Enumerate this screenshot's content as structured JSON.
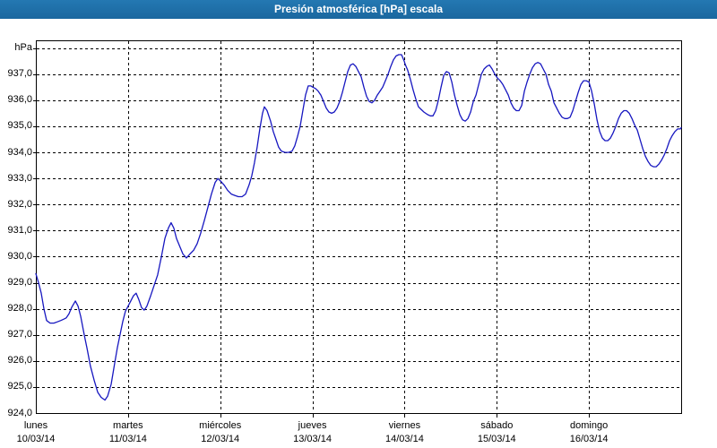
{
  "window": {
    "title": "Presión atmosférica [hPa] escala"
  },
  "axes": {
    "unit_label": "hPa",
    "y_tick_labels": [
      {
        "label": "937,0",
        "value": 937
      },
      {
        "label": "936,0",
        "value": 936
      },
      {
        "label": "935,0",
        "value": 935
      },
      {
        "label": "934,0",
        "value": 934
      },
      {
        "label": "933,0",
        "value": 933
      },
      {
        "label": "932,0",
        "value": 932
      },
      {
        "label": "931,0",
        "value": 931
      },
      {
        "label": "930,0",
        "value": 930
      },
      {
        "label": "929,0",
        "value": 929
      },
      {
        "label": "928,0",
        "value": 928
      },
      {
        "label": "927,0",
        "value": 927
      },
      {
        "label": "926,0",
        "value": 926
      },
      {
        "label": "925,0",
        "value": 925
      },
      {
        "label": "924,0",
        "value": 924
      }
    ],
    "x_tick_labels": [
      {
        "day": "lunes",
        "date": "10/03/14"
      },
      {
        "day": "martes",
        "date": "11/03/14"
      },
      {
        "day": "miércoles",
        "date": "12/03/14"
      },
      {
        "day": "jueves",
        "date": "13/03/14"
      },
      {
        "day": "viernes",
        "date": "14/03/14"
      },
      {
        "day": "sábado",
        "date": "15/03/14"
      },
      {
        "day": "domingo",
        "date": "16/03/14"
      }
    ]
  },
  "colors": {
    "titlebar": "#1d6ea9",
    "frame": "#1d6ea9",
    "line": "#1717c0",
    "grid": "#000000",
    "axis": "#000000",
    "background": "#ffffff"
  },
  "chart_data": {
    "type": "line",
    "title": "Presión atmosférica [hPa] escala",
    "xlabel": "",
    "ylabel": "hPa",
    "x_unit": "hours since lunes 10/03/14 00:00",
    "xlim": [
      0,
      168
    ],
    "ylim": [
      924,
      938.3
    ],
    "grid": true,
    "grid_style": "dashed",
    "y_gridline_values": [
      925,
      926,
      927,
      928,
      929,
      930,
      931,
      932,
      933,
      934,
      935,
      936,
      937,
      938
    ],
    "x_gridline_hours": [
      24,
      48,
      72,
      96,
      120,
      144
    ],
    "x_axis_tick_hours": [
      0,
      24,
      48,
      72,
      96,
      120,
      144
    ],
    "legend_position": "none",
    "series": [
      {
        "name": "Presión atmosférica",
        "color": "#1717c0",
        "points": [
          [
            0,
            929.35
          ],
          [
            0.7,
            929.0
          ],
          [
            1.4,
            928.6
          ],
          [
            2.1,
            928.0
          ],
          [
            2.8,
            927.55
          ],
          [
            3.7,
            927.45
          ],
          [
            4.7,
            927.45
          ],
          [
            5.6,
            927.5
          ],
          [
            6.5,
            927.55
          ],
          [
            7.2,
            927.6
          ],
          [
            7.9,
            927.65
          ],
          [
            8.6,
            927.8
          ],
          [
            9.3,
            928.05
          ],
          [
            10.3,
            928.3
          ],
          [
            11.0,
            928.1
          ],
          [
            11.7,
            927.7
          ],
          [
            12.6,
            927.0
          ],
          [
            13.3,
            926.5
          ],
          [
            14.2,
            925.8
          ],
          [
            15.2,
            925.25
          ],
          [
            16.1,
            924.8
          ],
          [
            17.0,
            924.6
          ],
          [
            18.0,
            924.5
          ],
          [
            18.7,
            924.65
          ],
          [
            19.6,
            925.1
          ],
          [
            20.5,
            925.9
          ],
          [
            21.2,
            926.5
          ],
          [
            21.9,
            927.0
          ],
          [
            22.6,
            927.5
          ],
          [
            23.3,
            927.9
          ],
          [
            24.0,
            928.1
          ],
          [
            24.7,
            928.3
          ],
          [
            25.4,
            928.5
          ],
          [
            26.1,
            928.6
          ],
          [
            26.8,
            928.35
          ],
          [
            27.5,
            928.05
          ],
          [
            28.2,
            927.95
          ],
          [
            28.9,
            928.1
          ],
          [
            29.9,
            928.5
          ],
          [
            30.8,
            928.9
          ],
          [
            31.7,
            929.3
          ],
          [
            32.7,
            930.0
          ],
          [
            33.6,
            930.7
          ],
          [
            34.5,
            931.1
          ],
          [
            35.2,
            931.3
          ],
          [
            35.9,
            931.1
          ],
          [
            36.6,
            930.7
          ],
          [
            37.3,
            930.45
          ],
          [
            38.3,
            930.1
          ],
          [
            39.2,
            929.95
          ],
          [
            40.1,
            930.1
          ],
          [
            41.1,
            930.25
          ],
          [
            42.0,
            930.5
          ],
          [
            42.9,
            930.9
          ],
          [
            43.9,
            931.4
          ],
          [
            44.8,
            931.9
          ],
          [
            45.7,
            932.4
          ],
          [
            46.7,
            932.85
          ],
          [
            47.4,
            933.0
          ],
          [
            48.1,
            932.9
          ],
          [
            49.0,
            932.75
          ],
          [
            49.9,
            932.55
          ],
          [
            50.9,
            932.4
          ],
          [
            51.8,
            932.35
          ],
          [
            52.7,
            932.3
          ],
          [
            53.7,
            932.3
          ],
          [
            54.6,
            932.4
          ],
          [
            55.5,
            932.75
          ],
          [
            56.2,
            933.1
          ],
          [
            56.9,
            933.6
          ],
          [
            57.6,
            934.2
          ],
          [
            58.3,
            934.9
          ],
          [
            59.0,
            935.5
          ],
          [
            59.5,
            935.75
          ],
          [
            60.2,
            935.6
          ],
          [
            61.1,
            935.2
          ],
          [
            61.8,
            934.8
          ],
          [
            62.5,
            934.5
          ],
          [
            63.2,
            934.2
          ],
          [
            63.9,
            934.05
          ],
          [
            64.9,
            934.0
          ],
          [
            65.8,
            934.0
          ],
          [
            66.7,
            934.05
          ],
          [
            67.4,
            934.25
          ],
          [
            68.1,
            934.6
          ],
          [
            68.8,
            935.0
          ],
          [
            69.5,
            935.6
          ],
          [
            70.2,
            936.2
          ],
          [
            70.9,
            936.55
          ],
          [
            71.6,
            936.55
          ],
          [
            72.1,
            936.5
          ],
          [
            72.8,
            936.45
          ],
          [
            73.5,
            936.35
          ],
          [
            74.2,
            936.2
          ],
          [
            74.9,
            935.95
          ],
          [
            75.6,
            935.7
          ],
          [
            76.3,
            935.55
          ],
          [
            77.0,
            935.5
          ],
          [
            77.7,
            935.55
          ],
          [
            78.4,
            935.7
          ],
          [
            79.1,
            935.95
          ],
          [
            79.8,
            936.3
          ],
          [
            80.5,
            936.7
          ],
          [
            81.2,
            937.1
          ],
          [
            81.9,
            937.35
          ],
          [
            82.6,
            937.4
          ],
          [
            83.3,
            937.3
          ],
          [
            84.0,
            937.1
          ],
          [
            84.7,
            936.9
          ],
          [
            85.4,
            936.5
          ],
          [
            86.1,
            936.15
          ],
          [
            86.8,
            935.95
          ],
          [
            87.5,
            935.9
          ],
          [
            88.2,
            936.0
          ],
          [
            88.9,
            936.2
          ],
          [
            89.6,
            936.35
          ],
          [
            90.3,
            936.5
          ],
          [
            91.0,
            936.75
          ],
          [
            91.7,
            937.0
          ],
          [
            92.4,
            937.3
          ],
          [
            93.1,
            937.55
          ],
          [
            93.8,
            937.7
          ],
          [
            94.5,
            937.75
          ],
          [
            95.2,
            937.75
          ],
          [
            95.9,
            937.5
          ],
          [
            96.1,
            937.4
          ],
          [
            96.8,
            937.15
          ],
          [
            97.5,
            936.8
          ],
          [
            98.2,
            936.4
          ],
          [
            98.9,
            936.05
          ],
          [
            99.6,
            935.75
          ],
          [
            100.3,
            935.65
          ],
          [
            101.0,
            935.55
          ],
          [
            102.0,
            935.45
          ],
          [
            102.7,
            935.4
          ],
          [
            103.4,
            935.4
          ],
          [
            104.1,
            935.6
          ],
          [
            104.8,
            936.0
          ],
          [
            105.5,
            936.5
          ],
          [
            106.2,
            936.95
          ],
          [
            106.9,
            937.1
          ],
          [
            107.6,
            937.05
          ],
          [
            108.3,
            936.7
          ],
          [
            109.0,
            936.2
          ],
          [
            109.7,
            935.8
          ],
          [
            110.4,
            935.45
          ],
          [
            111.1,
            935.25
          ],
          [
            111.8,
            935.2
          ],
          [
            112.5,
            935.3
          ],
          [
            113.2,
            935.55
          ],
          [
            113.9,
            935.95
          ],
          [
            114.6,
            936.2
          ],
          [
            115.3,
            936.6
          ],
          [
            116.0,
            937.0
          ],
          [
            116.7,
            937.2
          ],
          [
            117.4,
            937.3
          ],
          [
            118.1,
            937.35
          ],
          [
            118.8,
            937.2
          ],
          [
            119.5,
            937.0
          ],
          [
            120.2,
            936.85
          ],
          [
            120.9,
            936.75
          ],
          [
            121.6,
            936.6
          ],
          [
            122.3,
            936.4
          ],
          [
            123.0,
            936.2
          ],
          [
            123.7,
            935.9
          ],
          [
            124.4,
            935.7
          ],
          [
            125.1,
            935.6
          ],
          [
            125.8,
            935.6
          ],
          [
            126.5,
            935.8
          ],
          [
            127.2,
            936.35
          ],
          [
            127.9,
            936.7
          ],
          [
            128.6,
            937.0
          ],
          [
            129.3,
            937.25
          ],
          [
            130.0,
            937.4
          ],
          [
            130.7,
            937.45
          ],
          [
            131.4,
            937.4
          ],
          [
            132.1,
            937.2
          ],
          [
            132.8,
            937.0
          ],
          [
            133.5,
            936.6
          ],
          [
            134.2,
            936.35
          ],
          [
            134.9,
            935.9
          ],
          [
            135.6,
            935.7
          ],
          [
            136.3,
            935.5
          ],
          [
            137.0,
            935.35
          ],
          [
            137.7,
            935.3
          ],
          [
            138.4,
            935.3
          ],
          [
            139.1,
            935.35
          ],
          [
            139.8,
            935.6
          ],
          [
            140.5,
            935.95
          ],
          [
            141.2,
            936.3
          ],
          [
            141.9,
            936.6
          ],
          [
            142.6,
            936.75
          ],
          [
            143.3,
            936.75
          ],
          [
            144.0,
            936.7
          ],
          [
            144.7,
            936.35
          ],
          [
            145.4,
            935.85
          ],
          [
            146.1,
            935.25
          ],
          [
            146.8,
            934.8
          ],
          [
            147.5,
            934.55
          ],
          [
            148.2,
            934.45
          ],
          [
            148.9,
            934.45
          ],
          [
            149.6,
            934.55
          ],
          [
            150.3,
            934.75
          ],
          [
            151.0,
            935.0
          ],
          [
            151.7,
            935.3
          ],
          [
            152.4,
            935.5
          ],
          [
            153.1,
            935.6
          ],
          [
            153.8,
            935.6
          ],
          [
            154.5,
            935.5
          ],
          [
            155.2,
            935.3
          ],
          [
            155.9,
            935.05
          ],
          [
            156.6,
            934.85
          ],
          [
            157.3,
            934.5
          ],
          [
            158.0,
            934.15
          ],
          [
            158.7,
            933.85
          ],
          [
            159.4,
            933.65
          ],
          [
            160.1,
            933.5
          ],
          [
            160.8,
            933.45
          ],
          [
            161.5,
            933.45
          ],
          [
            162.2,
            933.55
          ],
          [
            162.9,
            933.7
          ],
          [
            163.6,
            933.9
          ],
          [
            164.3,
            934.15
          ],
          [
            165.0,
            934.45
          ],
          [
            165.7,
            934.65
          ],
          [
            166.4,
            934.8
          ],
          [
            167.1,
            934.9
          ],
          [
            167.8,
            934.9
          ],
          [
            168.0,
            934.95
          ]
        ]
      }
    ]
  }
}
